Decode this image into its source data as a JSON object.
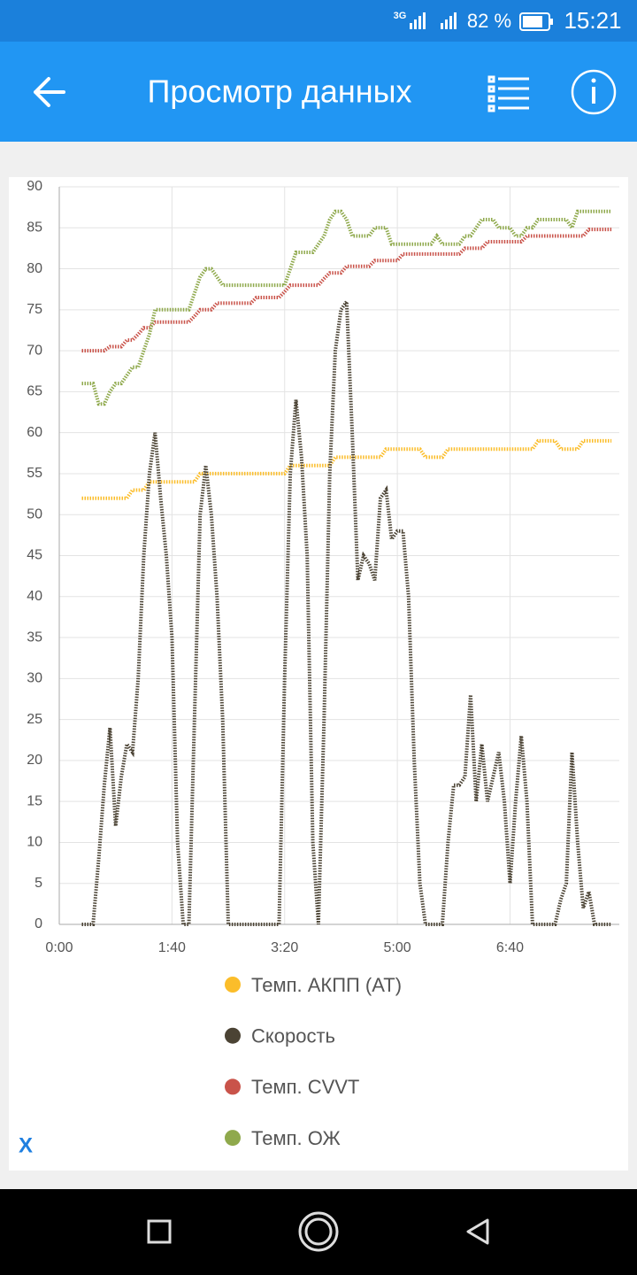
{
  "status_bar": {
    "network": "3G",
    "battery": "82 %",
    "time": "15:21"
  },
  "app_bar": {
    "title": "Просмотр данных"
  },
  "chart_data": {
    "type": "line",
    "xlabel": "X",
    "xlim": [
      0,
      497
    ],
    "xticks": [
      {
        "value": 0,
        "label": "0:00"
      },
      {
        "value": 100,
        "label": "1:40"
      },
      {
        "value": 200,
        "label": "3:20"
      },
      {
        "value": 300,
        "label": "5:00"
      },
      {
        "value": 400,
        "label": "6:40"
      }
    ],
    "ylim": [
      0,
      90
    ],
    "yticks": [
      0,
      5,
      10,
      15,
      20,
      25,
      30,
      35,
      40,
      45,
      50,
      55,
      60,
      65,
      70,
      75,
      80,
      85,
      90
    ],
    "grid": true,
    "legend": "bottom",
    "x": [
      20,
      25,
      30,
      35,
      40,
      45,
      50,
      55,
      60,
      65,
      70,
      75,
      80,
      85,
      90,
      95,
      100,
      105,
      110,
      115,
      120,
      125,
      130,
      135,
      140,
      145,
      150,
      155,
      160,
      165,
      170,
      175,
      180,
      185,
      190,
      195,
      200,
      205,
      210,
      215,
      220,
      225,
      230,
      235,
      240,
      245,
      250,
      255,
      260,
      265,
      270,
      275,
      280,
      285,
      290,
      295,
      300,
      305,
      310,
      315,
      320,
      325,
      330,
      335,
      340,
      345,
      350,
      355,
      360,
      365,
      370,
      375,
      380,
      385,
      390,
      395,
      400,
      405,
      410,
      415,
      420,
      425,
      430,
      435,
      440,
      445,
      450,
      455,
      460,
      465,
      470,
      475,
      480,
      485,
      490
    ],
    "series": [
      {
        "name": "Темп. АКПП (AT)",
        "color": "#fbbd2a",
        "values": [
          52,
          52,
          52,
          52,
          52,
          52,
          52,
          52,
          52,
          53,
          53,
          53,
          54,
          54,
          54,
          54,
          54,
          54,
          54,
          54,
          54,
          55,
          55,
          55,
          55,
          55,
          55,
          55,
          55,
          55,
          55,
          55,
          55,
          55,
          55,
          55,
          55,
          56,
          56,
          56,
          56,
          56,
          56,
          56,
          56,
          57,
          57,
          57,
          57,
          57,
          57,
          57,
          57,
          57,
          58,
          58,
          58,
          58,
          58,
          58,
          58,
          57,
          57,
          57,
          57,
          58,
          58,
          58,
          58,
          58,
          58,
          58,
          58,
          58,
          58,
          58,
          58,
          58,
          58,
          58,
          58,
          59,
          59,
          59,
          59,
          58,
          58,
          58,
          58,
          59,
          59,
          59,
          59,
          59,
          59
        ]
      },
      {
        "name": "Скорость",
        "color": "#4b4334",
        "values": [
          0,
          0,
          0,
          8,
          17,
          24,
          12,
          18,
          22,
          21,
          30,
          45,
          55,
          60,
          52,
          45,
          35,
          10,
          0,
          0,
          25,
          50,
          56,
          50,
          40,
          25,
          0,
          0,
          0,
          0,
          0,
          0,
          0,
          0,
          0,
          0,
          30,
          55,
          64,
          57,
          45,
          10,
          0,
          25,
          55,
          70,
          75,
          76,
          60,
          42,
          45,
          44,
          42,
          52,
          53,
          47,
          48,
          48,
          40,
          20,
          5,
          0,
          0,
          0,
          0,
          10,
          17,
          17,
          18,
          28,
          15,
          22,
          15,
          18,
          21,
          15,
          5,
          15,
          23,
          15,
          0,
          0,
          0,
          0,
          0,
          3,
          5,
          21,
          10,
          2,
          4,
          0,
          0,
          0,
          0
        ]
      },
      {
        "name": "Темп. CVVT",
        "color": "#c9534a",
        "values": [
          70,
          70,
          70,
          70,
          70,
          70.5,
          70.5,
          70.5,
          71.3,
          71.3,
          72,
          72.8,
          72.8,
          73.5,
          73.5,
          73.5,
          73.5,
          73.5,
          73.5,
          73.5,
          74.2,
          75,
          75,
          75,
          75.8,
          75.8,
          75.8,
          75.8,
          75.8,
          75.8,
          75.8,
          76.5,
          76.5,
          76.5,
          76.5,
          76.5,
          77.2,
          78,
          78,
          78,
          78,
          78,
          78,
          78.8,
          79.5,
          79.5,
          79.5,
          80.3,
          80.3,
          80.3,
          80.3,
          80.3,
          81,
          81,
          81,
          81,
          81,
          81.8,
          81.8,
          81.8,
          81.8,
          81.8,
          81.8,
          81.8,
          81.8,
          81.8,
          81.8,
          81.8,
          82.5,
          82.5,
          82.5,
          82.5,
          83.3,
          83.3,
          83.3,
          83.3,
          83.3,
          83.3,
          83.3,
          84,
          84,
          84,
          84,
          84,
          84,
          84,
          84,
          84,
          84,
          84,
          84.8,
          84.8,
          84.8,
          84.8,
          84.8
        ]
      },
      {
        "name": "Темп. ОЖ",
        "color": "#8fa94c",
        "values": [
          66,
          66,
          66,
          63.5,
          63.5,
          65,
          66,
          66,
          67,
          68,
          68,
          70,
          72,
          75,
          75,
          75,
          75,
          75,
          75,
          75,
          77,
          79,
          80,
          80,
          79,
          78,
          78,
          78,
          78,
          78,
          78,
          78,
          78,
          78,
          78,
          78,
          78,
          80,
          82,
          82,
          82,
          82,
          83,
          84,
          86,
          87,
          87,
          86,
          84,
          84,
          84,
          84,
          85,
          85,
          85,
          83,
          83,
          83,
          83,
          83,
          83,
          83,
          83,
          84,
          83,
          83,
          83,
          83,
          84,
          84,
          85,
          86,
          86,
          86,
          85,
          85,
          85,
          84,
          84,
          85,
          85,
          86,
          86,
          86,
          86,
          86,
          86,
          85,
          87,
          87,
          87,
          87,
          87,
          87,
          87
        ]
      }
    ]
  }
}
